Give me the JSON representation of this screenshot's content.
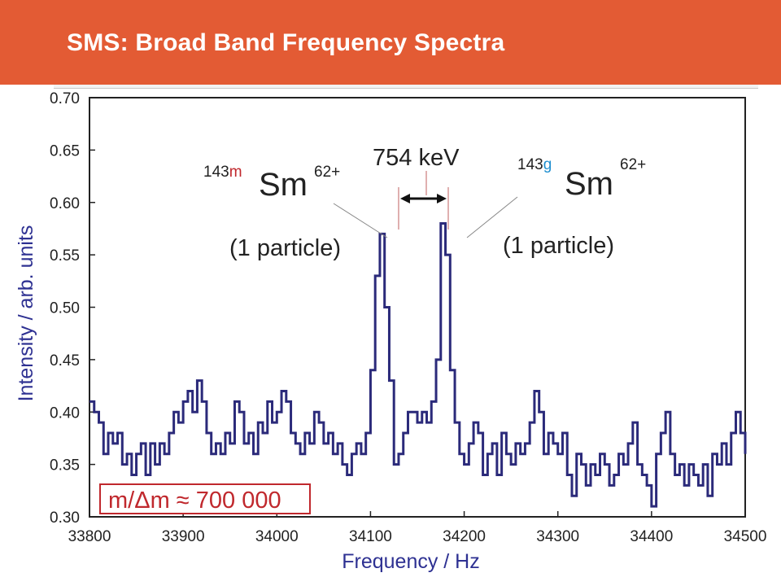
{
  "header": {
    "title": "SMS: Broad Band Frequency Spectra"
  },
  "chart_data": {
    "type": "line",
    "title": "",
    "xlabel": "Frequency / Hz",
    "ylabel": "Intensity / arb. units",
    "xlim": [
      33800,
      34500
    ],
    "ylim": [
      0.3,
      0.7
    ],
    "xticks": [
      "33800",
      "33900",
      "34000",
      "34100",
      "34200",
      "34300",
      "34400",
      "34500"
    ],
    "yticks": [
      "0.30",
      "0.35",
      "0.40",
      "0.45",
      "0.50",
      "0.55",
      "0.60",
      "0.65",
      "0.70"
    ],
    "series": [
      {
        "name": "",
        "color": "#2b2a7a",
        "x": [
          33800,
          33805,
          33810,
          33815,
          33820,
          33825,
          33830,
          33835,
          33840,
          33845,
          33850,
          33855,
          33860,
          33865,
          33870,
          33875,
          33880,
          33885,
          33890,
          33895,
          33900,
          33905,
          33910,
          33915,
          33920,
          33925,
          33930,
          33935,
          33940,
          33945,
          33950,
          33955,
          33960,
          33965,
          33970,
          33975,
          33980,
          33985,
          33990,
          33995,
          34000,
          34005,
          34010,
          34015,
          34020,
          34025,
          34030,
          34035,
          34040,
          34045,
          34050,
          34055,
          34060,
          34065,
          34070,
          34075,
          34080,
          34085,
          34090,
          34095,
          34100,
          34105,
          34110,
          34115,
          34120,
          34125,
          34130,
          34135,
          34140,
          34145,
          34150,
          34155,
          34160,
          34165,
          34170,
          34175,
          34180,
          34185,
          34190,
          34195,
          34200,
          34205,
          34210,
          34215,
          34220,
          34225,
          34230,
          34235,
          34240,
          34245,
          34250,
          34255,
          34260,
          34265,
          34270,
          34275,
          34280,
          34285,
          34290,
          34295,
          34300,
          34305,
          34310,
          34315,
          34320,
          34325,
          34330,
          34335,
          34340,
          34345,
          34350,
          34355,
          34360,
          34365,
          34370,
          34375,
          34380,
          34385,
          34390,
          34395,
          34400,
          34405,
          34410,
          34415,
          34420,
          34425,
          34430,
          34435,
          34440,
          34445,
          34450,
          34455,
          34460,
          34465,
          34470,
          34475,
          34480,
          34485,
          34490,
          34495,
          34500
        ],
        "y": [
          0.41,
          0.4,
          0.39,
          0.36,
          0.38,
          0.37,
          0.38,
          0.35,
          0.36,
          0.34,
          0.36,
          0.37,
          0.34,
          0.37,
          0.35,
          0.37,
          0.36,
          0.38,
          0.4,
          0.39,
          0.41,
          0.42,
          0.4,
          0.43,
          0.41,
          0.38,
          0.36,
          0.37,
          0.36,
          0.38,
          0.37,
          0.41,
          0.4,
          0.37,
          0.38,
          0.36,
          0.39,
          0.38,
          0.41,
          0.39,
          0.4,
          0.42,
          0.41,
          0.38,
          0.37,
          0.36,
          0.38,
          0.37,
          0.4,
          0.39,
          0.37,
          0.38,
          0.36,
          0.37,
          0.35,
          0.34,
          0.36,
          0.37,
          0.36,
          0.38,
          0.44,
          0.53,
          0.57,
          0.5,
          0.43,
          0.35,
          0.36,
          0.38,
          0.4,
          0.4,
          0.39,
          0.4,
          0.39,
          0.41,
          0.45,
          0.58,
          0.55,
          0.44,
          0.39,
          0.36,
          0.35,
          0.37,
          0.39,
          0.38,
          0.34,
          0.36,
          0.37,
          0.34,
          0.38,
          0.36,
          0.35,
          0.37,
          0.36,
          0.37,
          0.39,
          0.42,
          0.4,
          0.36,
          0.38,
          0.37,
          0.36,
          0.38,
          0.34,
          0.32,
          0.36,
          0.35,
          0.33,
          0.35,
          0.34,
          0.36,
          0.35,
          0.33,
          0.34,
          0.36,
          0.35,
          0.37,
          0.39,
          0.35,
          0.34,
          0.33,
          0.31,
          0.36,
          0.38,
          0.4,
          0.36,
          0.34,
          0.35,
          0.33,
          0.35,
          0.34,
          0.33,
          0.35,
          0.32,
          0.36,
          0.35,
          0.37,
          0.35,
          0.38,
          0.4,
          0.38,
          0.36
        ]
      }
    ],
    "annotations": {
      "left_peak": {
        "mass": "143",
        "state": "m",
        "element": "Sm",
        "charge": "62+",
        "note": "(1 particle)",
        "state_color": "#c0282d",
        "x": 34130
      },
      "right_peak": {
        "mass": "143",
        "state": "g",
        "element": "Sm",
        "charge": "62+",
        "note": "(1 particle)",
        "state_color": "#1f8fd0",
        "x": 34183
      },
      "separation": "754 keV",
      "resolution": "m/Δm ≈ 700 000",
      "resolution_color": "#c0282d"
    }
  }
}
